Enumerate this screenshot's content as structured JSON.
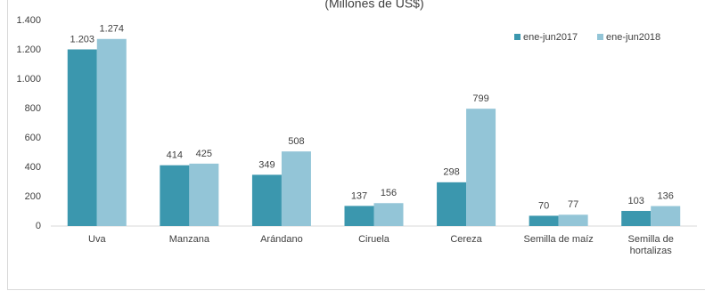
{
  "chart_data": {
    "type": "bar",
    "subtitle": "(Millones de US$)",
    "categories": [
      "Uva",
      "Manzana",
      "Arándano",
      "Ciruela",
      "Cereza",
      "Semilla de maíz",
      "Semilla de hortalizas"
    ],
    "series": [
      {
        "name": "ene-jun2017",
        "color": "#3b97ae",
        "values": [
          1203,
          414,
          349,
          137,
          298,
          70,
          103
        ],
        "value_labels": [
          "1.203",
          "414",
          "349",
          "137",
          "298",
          "70",
          "103"
        ]
      },
      {
        "name": "ene-jun2018",
        "color": "#93c5d7",
        "values": [
          1274,
          425,
          508,
          156,
          799,
          77,
          136
        ],
        "value_labels": [
          "1.274",
          "425",
          "508",
          "156",
          "799",
          "77",
          "136"
        ]
      }
    ],
    "ylim": [
      0,
      1400
    ],
    "yticks": [
      0,
      200,
      400,
      600,
      800,
      {
        "value": 1000,
        "label": "1.000"
      },
      {
        "value": 1200,
        "label": "1.200"
      },
      {
        "value": 1400,
        "label": "1.400"
      }
    ],
    "grid": false,
    "legend": "top-right"
  }
}
